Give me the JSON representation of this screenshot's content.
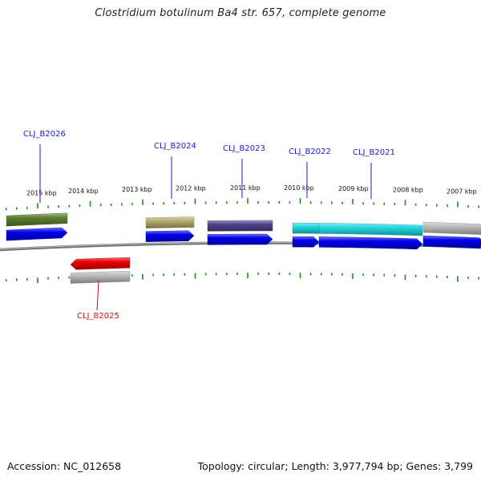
{
  "title": "Clostridium botulinum Ba4 str. 657, complete genome",
  "footer": {
    "accession": "Accession: NC_012658",
    "summary": "Topology: circular; Length: 3,977,794 bp; Genes: 3,799"
  },
  "colors": {
    "background": "#ffffff",
    "backbone": "#8a8a8a",
    "tick": "#1f8a1f",
    "label_forward": "#1a1acc",
    "label_reverse": "#cc1111",
    "cds_forward": "#0000ee",
    "cds_reverse": "#ee0000"
  },
  "ruler": [
    {
      "label": "2015 kbp"
    },
    {
      "label": "2014 kbp"
    },
    {
      "label": "2013 kbp"
    },
    {
      "label": "2012 kbp"
    },
    {
      "label": "2011 kbp"
    },
    {
      "label": "2010 kbp"
    },
    {
      "label": "2009 kbp"
    },
    {
      "label": "2008 kbp"
    },
    {
      "label": "2007 kbp"
    }
  ],
  "genes": [
    {
      "name": "CLJ_B2026",
      "strand": "+",
      "category_color": "#5f8030"
    },
    {
      "name": "CLJ_B2025",
      "strand": "-",
      "category_color": "#bcbcbc"
    },
    {
      "name": "CLJ_B2024",
      "strand": "+",
      "category_color": "#b6ae6c"
    },
    {
      "name": "CLJ_B2023",
      "strand": "+",
      "category_color": "#4e4390"
    },
    {
      "name": "CLJ_B2022",
      "strand": "+",
      "category_color": "#22d8e0"
    },
    {
      "name": "CLJ_B2021",
      "strand": "+",
      "category_color": "#22d8e0"
    },
    {
      "name": "",
      "strand": "+",
      "category_color": "#bcbcbc"
    }
  ]
}
